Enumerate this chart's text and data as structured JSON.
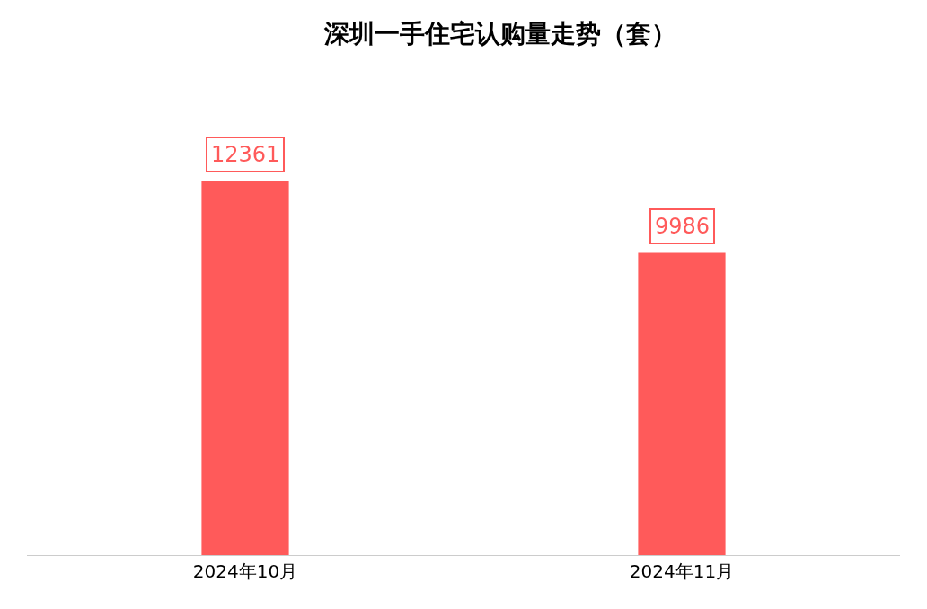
{
  "chart_data": {
    "type": "bar",
    "title": "深圳一手住宅认购量走势（套）",
    "categories": [
      "2024年10月",
      "2024年11月"
    ],
    "values": [
      12361,
      9986
    ],
    "color": "#ff5a5a",
    "data_labels": true
  }
}
